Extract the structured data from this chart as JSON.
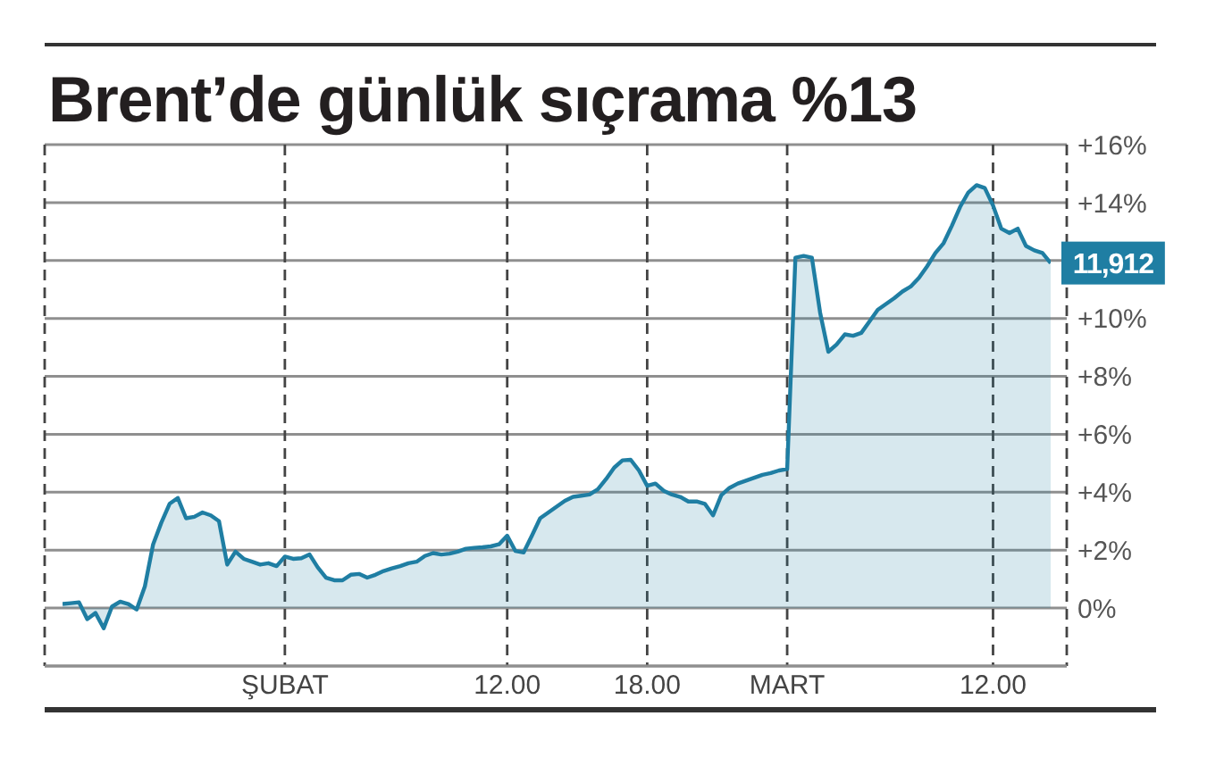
{
  "chart_data": {
    "type": "area",
    "title": "Brent’de günlük sıçrama %13",
    "categories": [
      null,
      null,
      null,
      null,
      null,
      null,
      null,
      null,
      null,
      null,
      null,
      null,
      null,
      null,
      null,
      null,
      null,
      null,
      null,
      null,
      null,
      null,
      null,
      null,
      null,
      null,
      null,
      "ŞUBAT",
      null,
      null,
      null,
      null,
      null,
      null,
      null,
      null,
      null,
      null,
      null,
      null,
      null,
      null,
      null,
      null,
      null,
      null,
      null,
      null,
      null,
      null,
      null,
      null,
      null,
      null,
      "12.00",
      null,
      null,
      null,
      null,
      null,
      null,
      null,
      null,
      null,
      null,
      null,
      null,
      null,
      null,
      null,
      null,
      "18.00",
      null,
      null,
      null,
      null,
      null,
      null,
      null,
      null,
      null,
      null,
      null,
      null,
      null,
      null,
      null,
      null,
      "MART",
      null,
      null,
      null,
      null,
      null,
      null,
      null,
      null,
      null,
      null,
      null,
      null,
      null,
      null,
      null,
      null,
      null,
      null,
      null,
      null,
      null,
      null,
      null,
      null,
      "12.00",
      null,
      null,
      null,
      null,
      null,
      null,
      null
    ],
    "values": [
      0.14,
      0.17,
      0.2,
      -0.38,
      -0.17,
      -0.7,
      0.05,
      0.22,
      0.14,
      -0.05,
      0.75,
      2.2,
      2.95,
      3.6,
      3.8,
      3.1,
      3.15,
      3.3,
      3.2,
      3.0,
      1.5,
      1.95,
      1.7,
      1.6,
      1.5,
      1.55,
      1.45,
      1.78,
      1.7,
      1.72,
      1.85,
      1.4,
      1.05,
      0.96,
      0.96,
      1.15,
      1.18,
      1.05,
      1.15,
      1.28,
      1.37,
      1.45,
      1.55,
      1.6,
      1.8,
      1.9,
      1.85,
      1.88,
      1.95,
      2.05,
      2.08,
      2.1,
      2.13,
      2.2,
      2.5,
      1.97,
      1.92,
      2.5,
      3.1,
      3.3,
      3.5,
      3.7,
      3.84,
      3.88,
      3.92,
      4.1,
      4.45,
      4.85,
      5.1,
      5.12,
      4.75,
      4.22,
      4.3,
      4.05,
      3.92,
      3.84,
      3.68,
      3.68,
      3.6,
      3.2,
      3.9,
      4.15,
      4.3,
      4.4,
      4.5,
      4.6,
      4.66,
      4.75,
      4.8,
      12.1,
      12.16,
      12.1,
      10.2,
      8.85,
      9.1,
      9.45,
      9.4,
      9.5,
      9.9,
      10.3,
      10.5,
      10.7,
      10.93,
      11.1,
      11.4,
      11.8,
      12.26,
      12.6,
      13.2,
      13.85,
      14.35,
      14.6,
      14.5,
      13.9,
      13.1,
      12.95,
      13.1,
      12.5,
      12.35,
      12.26,
      11.912
    ],
    "annotations": [
      "11,912"
    ],
    "color": "#1f7ea3",
    "ylim": [
      -2,
      16
    ],
    "yticks": [
      {
        "value": -2,
        "label": null
      },
      {
        "value": 0,
        "label": "0%"
      },
      {
        "value": 2,
        "label": "+2%"
      },
      {
        "value": 4,
        "label": "+4%"
      },
      {
        "value": 6,
        "label": "+6%"
      },
      {
        "value": 8,
        "label": "+8%"
      },
      {
        "value": 10,
        "label": "+10%"
      },
      {
        "value": 12,
        "label": null
      },
      {
        "value": 14,
        "label": "+14%"
      },
      {
        "value": 16,
        "label": "+16%"
      }
    ],
    "grid": true
  }
}
